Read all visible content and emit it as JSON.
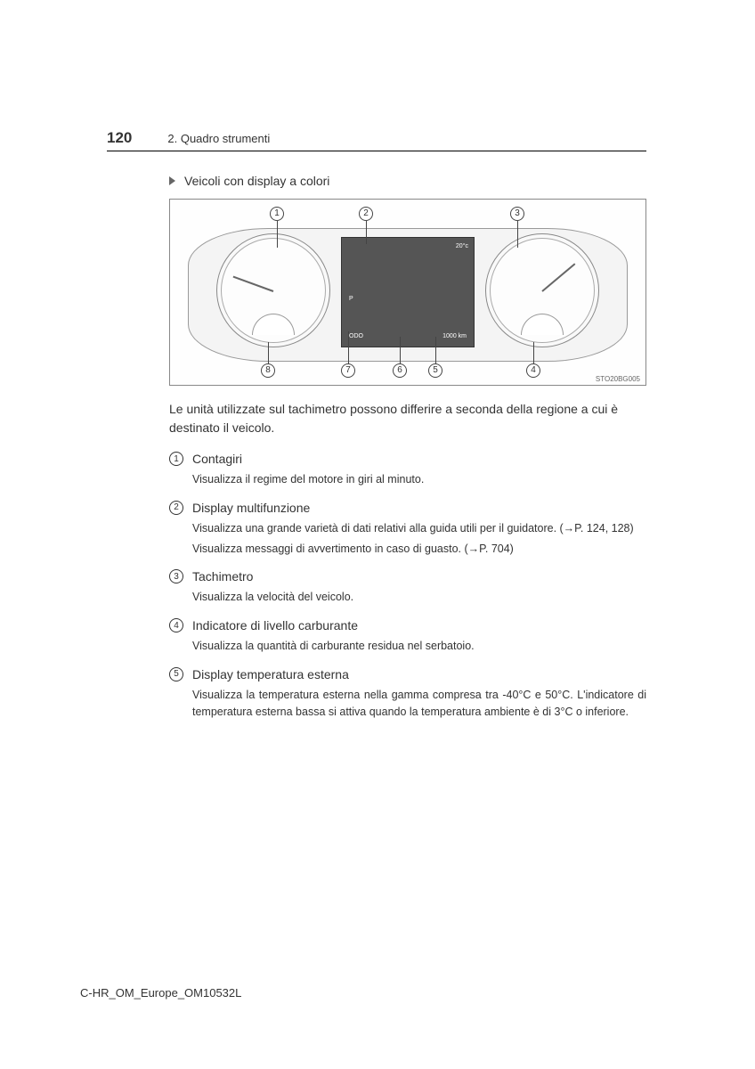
{
  "header": {
    "page_number": "120",
    "section": "2. Quadro strumenti"
  },
  "subtitle": "Veicoli con display a colori",
  "diagram": {
    "code": "STO20BG005",
    "center_screen": {
      "temp": "20°c",
      "gear": "P",
      "odo_label": "ODO",
      "odo_value": "1000 km"
    },
    "callout_labels": [
      "1",
      "2",
      "3",
      "4",
      "5",
      "6",
      "7",
      "8"
    ]
  },
  "intro": "Le unità utilizzate sul tachimetro possono differire a seconda della regione a cui è destinato il veicolo.",
  "items": [
    {
      "num": "1",
      "title": "Contagiri",
      "descs": [
        "Visualizza il regime del motore in giri al minuto."
      ]
    },
    {
      "num": "2",
      "title": "Display multifunzione",
      "descs": [
        "Visualizza una grande varietà di dati relativi alla guida utili per il guidatore. (→P. 124, 128)",
        "Visualizza messaggi di avvertimento in caso di guasto. (→P. 704)"
      ]
    },
    {
      "num": "3",
      "title": "Tachimetro",
      "descs": [
        "Visualizza la velocità del veicolo."
      ]
    },
    {
      "num": "4",
      "title": "Indicatore di livello carburante",
      "descs": [
        "Visualizza la quantità di carburante residua nel serbatoio."
      ]
    },
    {
      "num": "5",
      "title": "Display temperatura esterna",
      "descs": [
        "Visualizza la temperatura esterna nella gamma compresa tra -40°C e 50°C. L'indicatore di temperatura esterna bassa si attiva quando la temperatura ambiente è di 3°C o inferiore."
      ]
    }
  ],
  "footer": "C-HR_OM_Europe_OM10532L"
}
